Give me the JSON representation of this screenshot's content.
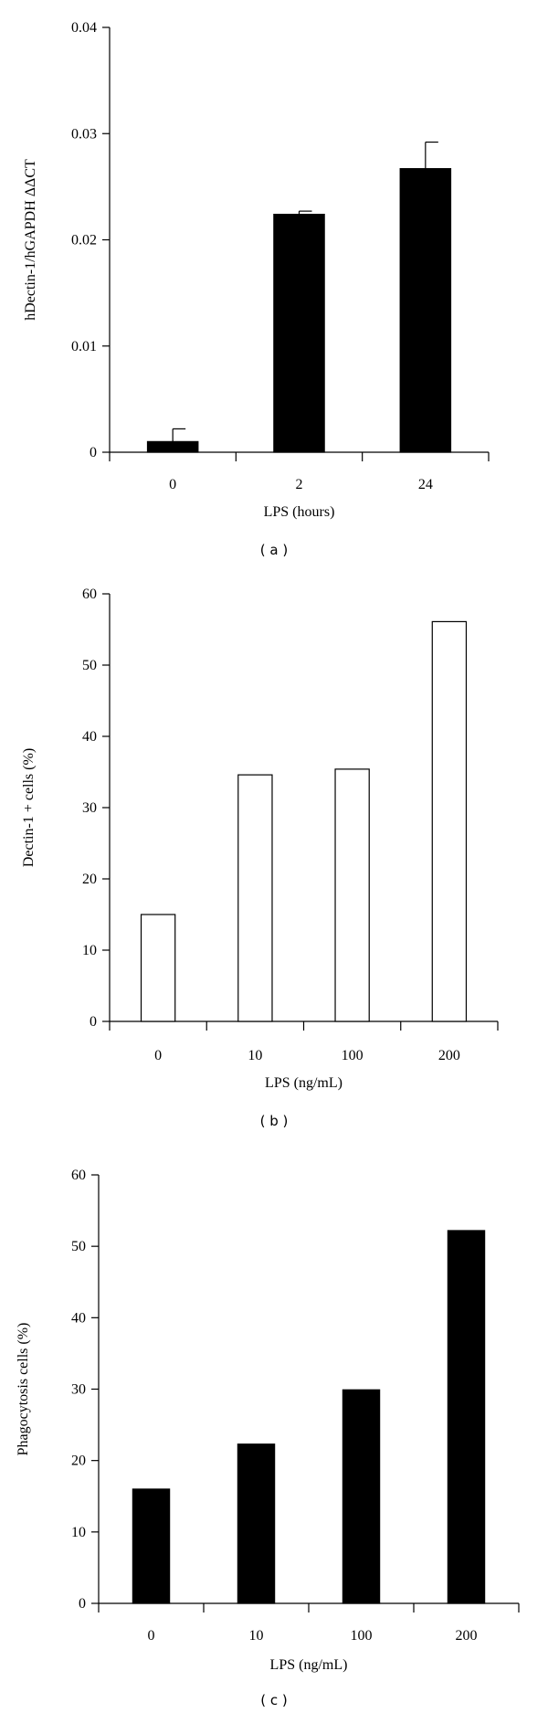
{
  "chart_data": [
    {
      "type": "bar",
      "panel_label": "( a )",
      "categories": [
        "0",
        "2",
        "24"
      ],
      "values": [
        0.001,
        0.0224,
        0.0267
      ],
      "errors": [
        0.0012,
        0.0003,
        0.0025
      ],
      "ylabel": "hDectin-1/hGAPDH ΔΔCT",
      "xlabel": "LPS (hours)",
      "ylim": [
        0,
        0.04
      ],
      "yticks": [
        "0",
        "0.01",
        "0.02",
        "0.03",
        "0.04"
      ],
      "ytick_values": [
        0,
        0.01,
        0.02,
        0.03,
        0.04
      ],
      "bar_color": "#000000",
      "grid": false
    },
    {
      "type": "bar",
      "panel_label": "( b )",
      "categories": [
        "0",
        "10",
        "100",
        "200"
      ],
      "values": [
        15,
        34.6,
        35.4,
        56.1
      ],
      "ylabel": "Dectin-1 + cells (%)",
      "xlabel": "LPS (ng/mL)",
      "ylim": [
        0,
        60
      ],
      "yticks": [
        "0",
        "10",
        "20",
        "30",
        "40",
        "50",
        "60"
      ],
      "ytick_values": [
        0,
        10,
        20,
        30,
        40,
        50,
        60
      ],
      "bar_color": "#ffffff",
      "grid": false
    },
    {
      "type": "bar",
      "panel_label": "( c )",
      "categories": [
        "0",
        "10",
        "100",
        "200"
      ],
      "values": [
        16,
        22.3,
        29.9,
        52.2
      ],
      "ylabel": "Phagocytosis cells (%)",
      "xlabel": "LPS (ng/mL)",
      "ylim": [
        0,
        60
      ],
      "yticks": [
        "0",
        "10",
        "20",
        "30",
        "40",
        "50",
        "60"
      ],
      "ytick_values": [
        0,
        10,
        20,
        30,
        40,
        50,
        60
      ],
      "bar_color": "#000000",
      "grid": false
    }
  ]
}
